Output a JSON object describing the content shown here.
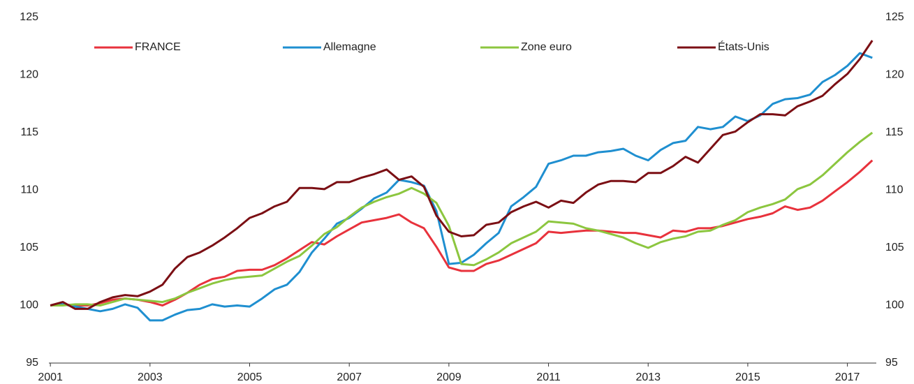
{
  "chart_data": {
    "type": "line",
    "x": [
      2001,
      2001.25,
      2001.5,
      2001.75,
      2002,
      2002.25,
      2002.5,
      2002.75,
      2003,
      2003.25,
      2003.5,
      2003.75,
      2004,
      2004.25,
      2004.5,
      2004.75,
      2005,
      2005.25,
      2005.5,
      2005.75,
      2006,
      2006.25,
      2006.5,
      2006.75,
      2007,
      2007.25,
      2007.5,
      2007.75,
      2008,
      2008.25,
      2008.5,
      2008.75,
      2009,
      2009.25,
      2009.5,
      2009.75,
      2010,
      2010.25,
      2010.5,
      2010.75,
      2011,
      2011.25,
      2011.5,
      2011.75,
      2012,
      2012.25,
      2012.5,
      2012.75,
      2013,
      2013.25,
      2013.5,
      2013.75,
      2014,
      2014.25,
      2014.5,
      2014.75,
      2015,
      2015.25,
      2015.5,
      2015.75,
      2016,
      2016.25,
      2016.5,
      2016.75,
      2017,
      2017.25,
      2017.5
    ],
    "series": [
      {
        "name": "FRANCE",
        "color": "#e8323c",
        "values": [
          100,
          100.1,
          100,
          100,
          100.2,
          100.5,
          100.6,
          100.5,
          100.3,
          100.0,
          100.5,
          101.1,
          101.8,
          102.3,
          102.5,
          103.0,
          103.1,
          103.1,
          103.5,
          104.1,
          104.8,
          105.5,
          105.3,
          106.0,
          106.6,
          107.2,
          107.4,
          107.6,
          107.9,
          107.2,
          106.7,
          105.1,
          103.3,
          103.0,
          103.0,
          103.6,
          103.9,
          104.4,
          104.9,
          105.4,
          106.4,
          106.3,
          106.4,
          106.5,
          106.5,
          106.4,
          106.3,
          106.3,
          106.1,
          105.9,
          106.5,
          106.4,
          106.7,
          106.7,
          106.9,
          107.2,
          107.5,
          107.7,
          108.0,
          108.6,
          108.3,
          108.5,
          109.1,
          109.9,
          110.7,
          111.6,
          112.6
        ]
      },
      {
        "name": "Allemagne",
        "color": "#1f8fd0",
        "values": [
          100,
          100.1,
          99.9,
          99.7,
          99.5,
          99.7,
          100.1,
          99.8,
          98.7,
          98.7,
          99.2,
          99.6,
          99.7,
          100.1,
          99.9,
          100.0,
          99.9,
          100.6,
          101.4,
          101.8,
          102.9,
          104.6,
          105.8,
          107.1,
          107.6,
          108.4,
          109.3,
          109.8,
          110.9,
          110.7,
          110.4,
          108.2,
          103.6,
          103.7,
          104.4,
          105.4,
          106.3,
          108.6,
          109.4,
          110.3,
          112.3,
          112.6,
          113.0,
          113.0,
          113.3,
          113.4,
          113.6,
          113.0,
          112.6,
          113.5,
          114.1,
          114.3,
          115.5,
          115.3,
          115.5,
          116.4,
          116.0,
          116.5,
          117.5,
          117.9,
          118.0,
          118.3,
          119.4,
          120.0,
          120.8,
          121.9,
          121.5
        ]
      },
      {
        "name": "Zone euro",
        "color": "#8cc63f",
        "values": [
          100,
          100.0,
          100.1,
          100.1,
          100.0,
          100.3,
          100.6,
          100.5,
          100.4,
          100.3,
          100.6,
          101.1,
          101.5,
          101.9,
          102.2,
          102.4,
          102.5,
          102.6,
          103.2,
          103.8,
          104.3,
          105.2,
          106.2,
          106.8,
          107.7,
          108.5,
          109.0,
          109.4,
          109.7,
          110.2,
          109.7,
          108.9,
          106.9,
          103.6,
          103.5,
          104.0,
          104.6,
          105.4,
          105.9,
          106.4,
          107.3,
          107.2,
          107.1,
          106.7,
          106.5,
          106.2,
          105.9,
          105.4,
          105.0,
          105.5,
          105.8,
          106.0,
          106.4,
          106.5,
          107.0,
          107.4,
          108.1,
          108.5,
          108.8,
          109.2,
          110.1,
          110.5,
          111.3,
          112.3,
          113.3,
          114.2,
          115.0
        ]
      },
      {
        "name": "États-Unis",
        "color": "#7b0f14",
        "values": [
          100,
          100.3,
          99.7,
          99.7,
          100.3,
          100.7,
          100.9,
          100.8,
          101.2,
          101.8,
          103.2,
          104.2,
          104.6,
          105.2,
          105.9,
          106.7,
          107.6,
          108.0,
          108.6,
          109.0,
          110.2,
          110.2,
          110.1,
          110.7,
          110.7,
          111.1,
          111.4,
          111.8,
          110.9,
          111.2,
          110.3,
          107.8,
          106.4,
          106.0,
          106.1,
          107.0,
          107.2,
          108.1,
          108.6,
          109.0,
          108.5,
          109.1,
          108.9,
          109.8,
          110.5,
          110.8,
          110.8,
          110.7,
          111.5,
          111.5,
          112.1,
          112.9,
          112.4,
          113.6,
          114.8,
          115.1,
          115.9,
          116.6,
          116.6,
          116.5,
          117.3,
          117.7,
          118.2,
          119.2,
          120.1,
          121.4,
          123.0
        ]
      }
    ],
    "xlim": [
      2000.97,
      2017.58
    ],
    "xticks": [
      2001,
      2003,
      2005,
      2007,
      2009,
      2011,
      2013,
      2015,
      2017
    ],
    "ylim": [
      95,
      125
    ],
    "yticks": [
      95,
      100,
      105,
      110,
      115,
      120,
      125
    ],
    "y2lim": [
      95,
      125
    ],
    "y2ticks": [
      95,
      100,
      105,
      110,
      115,
      120,
      125
    ],
    "legend": "top"
  }
}
